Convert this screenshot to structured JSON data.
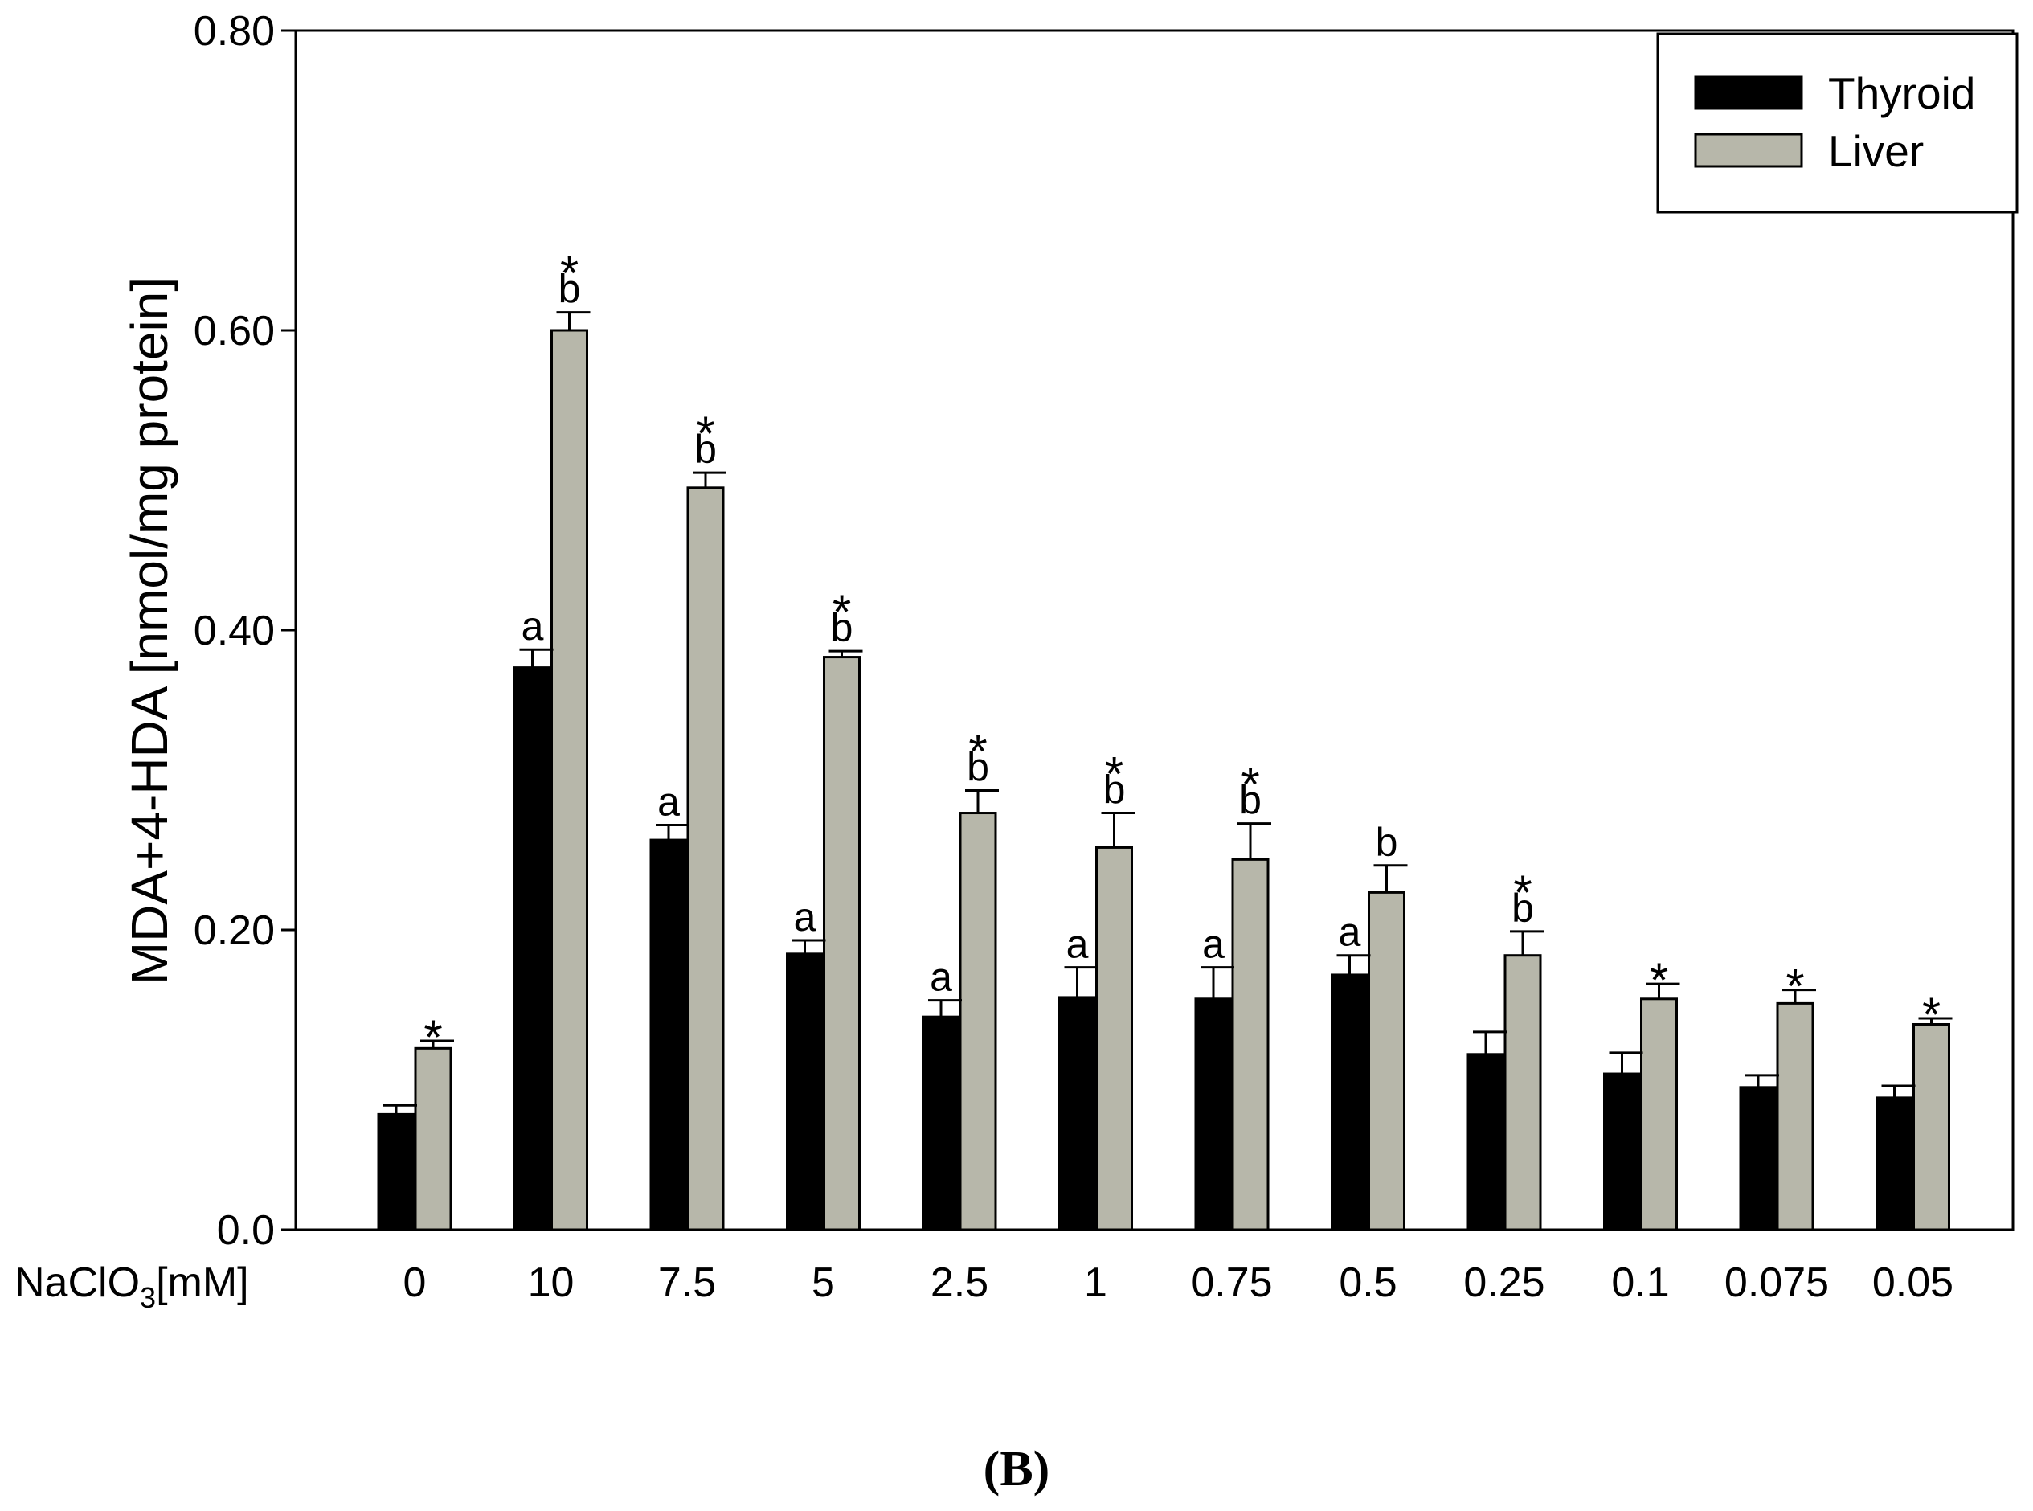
{
  "chart_data": {
    "type": "bar",
    "title": "",
    "xlabel": "NaClO",
    "xlabel_subscript": "3",
    "xlabel_unit": "[mM]",
    "ylabel": "MDA+4-HDA [nmol/mg protein]",
    "ylim": [
      0,
      0.8
    ],
    "yticks": [
      {
        "value": 0,
        "label": "0.0"
      },
      {
        "value": 0.2,
        "label": "0.20"
      },
      {
        "value": 0.4,
        "label": "0.40"
      },
      {
        "value": 0.6,
        "label": "0.60"
      },
      {
        "value": 0.8,
        "label": "0.80"
      }
    ],
    "categories": [
      "0",
      "10",
      "7.5",
      "5",
      "2.5",
      "1",
      "0.75",
      "0.5",
      "0.25",
      "0.1",
      "0.075",
      "0.05"
    ],
    "series": [
      {
        "name": "Thyroid",
        "color": "#000000",
        "values": [
          0.077,
          0.375,
          0.26,
          0.184,
          0.142,
          0.155,
          0.154,
          0.17,
          0.117,
          0.104,
          0.095,
          0.088
        ],
        "errors": [
          0.006,
          0.012,
          0.01,
          0.009,
          0.011,
          0.02,
          0.021,
          0.013,
          0.015,
          0.014,
          0.008,
          0.008
        ],
        "letters": [
          "",
          "a",
          "a",
          "a",
          "a",
          "a",
          "a",
          "a",
          "",
          "",
          "",
          ""
        ]
      },
      {
        "name": "Liver",
        "color": "#b7b7aa",
        "values": [
          0.121,
          0.6,
          0.495,
          0.382,
          0.278,
          0.255,
          0.247,
          0.225,
          0.183,
          0.154,
          0.151,
          0.137
        ],
        "errors": [
          0.005,
          0.012,
          0.01,
          0.004,
          0.015,
          0.023,
          0.024,
          0.018,
          0.016,
          0.01,
          0.009,
          0.004
        ],
        "letters": [
          "",
          "b",
          "b",
          "b",
          "b",
          "b",
          "b",
          "b",
          "b",
          "",
          "",
          ""
        ],
        "stars": [
          true,
          true,
          true,
          true,
          true,
          true,
          true,
          false,
          true,
          true,
          true,
          true
        ]
      }
    ],
    "legend_position": "top-right",
    "star_symbol": "*",
    "panel_label": "(B)"
  }
}
